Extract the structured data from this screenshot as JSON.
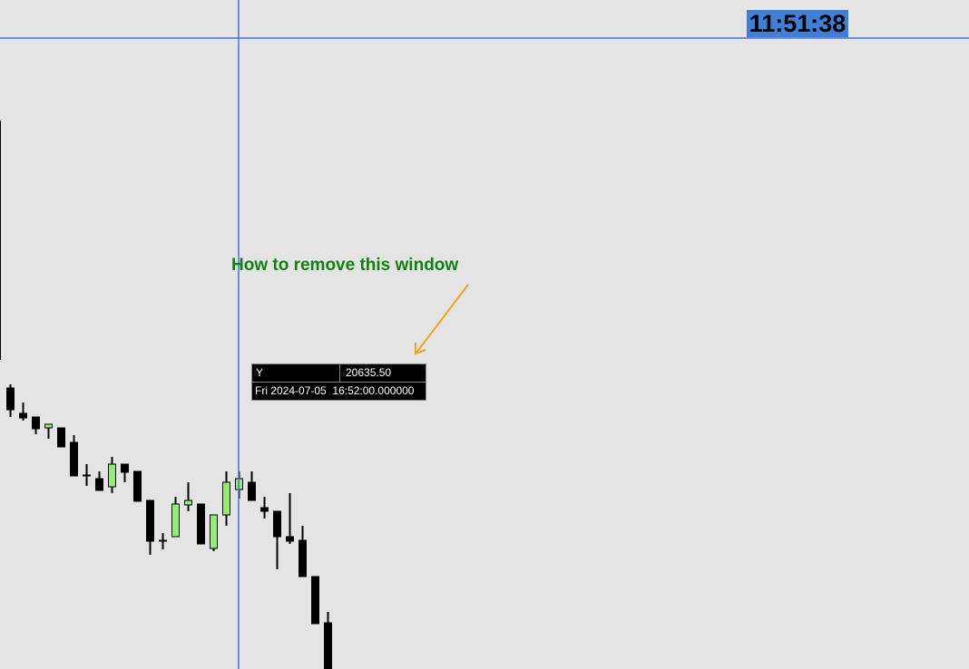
{
  "clock": {
    "time": "11:51:38",
    "background": "#3e80d8"
  },
  "annotation": {
    "text": "How to remove this window",
    "color": "#0f820f",
    "arrow_color": "#f0a020"
  },
  "tooltip": {
    "label_y": "Y",
    "value_y": "20635.50",
    "date": "Fri 2024-07-05",
    "time": "16:52:00.000000"
  },
  "crosshair": {
    "color": "#4a6fe0"
  },
  "chart_data": {
    "type": "candlestick",
    "colors": {
      "bull": "#90ee70",
      "bear": "#000000"
    },
    "note_units": "relative price units (no price axis visible)",
    "candles": [
      {
        "o": 605,
        "h": 605,
        "l": 341,
        "c": 341
      },
      {
        "o": 310,
        "h": 314,
        "l": 278,
        "c": 286
      },
      {
        "o": 282,
        "h": 294,
        "l": 274,
        "c": 277
      },
      {
        "o": 278,
        "h": 278,
        "l": 259,
        "c": 265
      },
      {
        "o": 266,
        "h": 270,
        "l": 254,
        "c": 270
      },
      {
        "o": 266,
        "h": 266,
        "l": 245,
        "c": 245
      },
      {
        "o": 250,
        "h": 258,
        "l": 213,
        "c": 213
      },
      {
        "o": 214,
        "h": 226,
        "l": 202,
        "c": 214
      },
      {
        "o": 210,
        "h": 218,
        "l": 197,
        "c": 197
      },
      {
        "o": 201,
        "h": 234,
        "l": 194,
        "c": 226
      },
      {
        "o": 226,
        "h": 226,
        "l": 206,
        "c": 217
      },
      {
        "o": 218,
        "h": 218,
        "l": 185,
        "c": 185
      },
      {
        "o": 186,
        "h": 186,
        "l": 126,
        "c": 141
      },
      {
        "o": 142,
        "h": 150,
        "l": 132,
        "c": 142
      },
      {
        "o": 146,
        "h": 190,
        "l": 146,
        "c": 182
      },
      {
        "o": 181,
        "h": 206,
        "l": 174,
        "c": 186
      },
      {
        "o": 182,
        "h": 182,
        "l": 138,
        "c": 138
      },
      {
        "o": 133,
        "h": 170,
        "l": 130,
        "c": 170
      },
      {
        "o": 170,
        "h": 218,
        "l": 158,
        "c": 206
      },
      {
        "o": 198,
        "h": 218,
        "l": 188,
        "c": 210
      },
      {
        "o": 206,
        "h": 218,
        "l": 186,
        "c": 186
      },
      {
        "o": 178,
        "h": 190,
        "l": 166,
        "c": 174
      },
      {
        "o": 174,
        "h": 174,
        "l": 110,
        "c": 146
      },
      {
        "o": 146,
        "h": 194,
        "l": 138,
        "c": 141
      },
      {
        "o": 142,
        "h": 158,
        "l": 102,
        "c": 102
      },
      {
        "o": 102,
        "h": 102,
        "l": 50,
        "c": 50
      },
      {
        "o": 51,
        "h": 63,
        "l": 0,
        "c": 0
      }
    ]
  }
}
